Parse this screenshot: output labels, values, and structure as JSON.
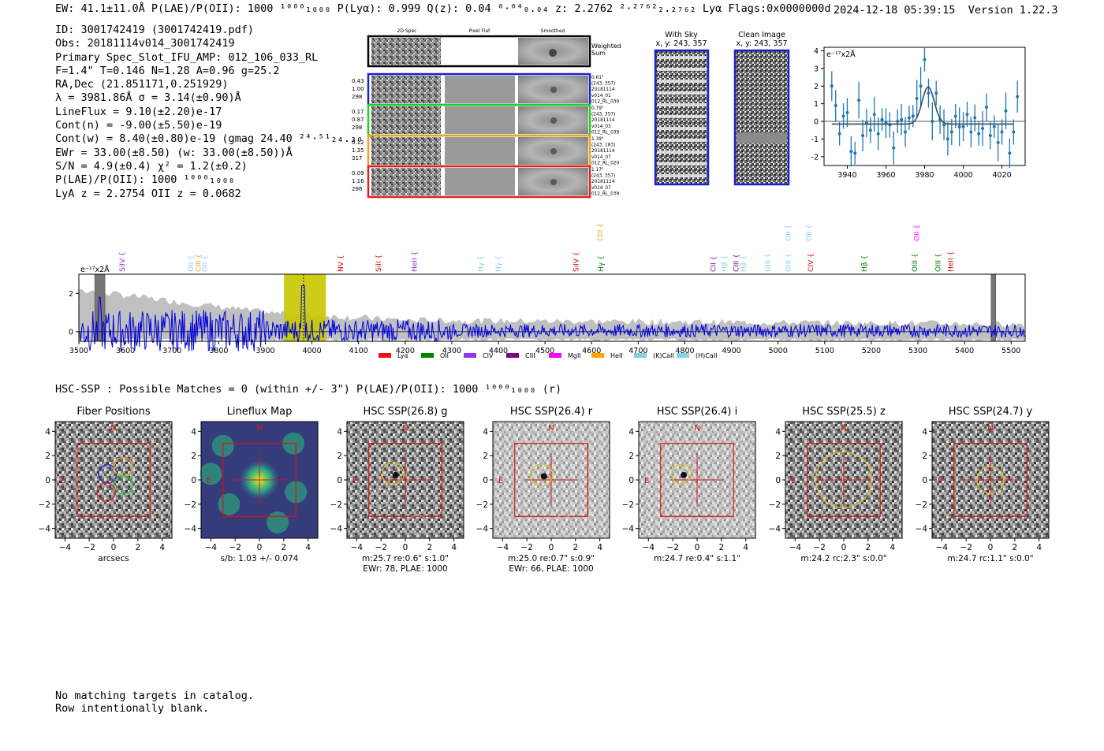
{
  "header": {
    "line": "EW: 41.1±11.0Å  P(LAE)/P(OII): 1000 ¹⁰⁰⁰₁₀₀₀  P(Lyα): 0.999  Q(z): 0.04 ⁰·⁰⁴₀.₀₄  z: 2.2762 ²·²⁷⁶²₂.₂₇₆₂  Lyα  Flags:0x0000000d",
    "timestamp": "2024-12-18 05:39:15",
    "version": "Version 1.22.3"
  },
  "info": [
    "ID: 3001742419 (3001742419.pdf)",
    "Obs: 20181114v014_3001742419",
    "Primary Spec_Slot_IFU_AMP: 012_106_033_RL",
    "F=1.4\"  T=0.146  N=1.28  A=0.96  g=25.2",
    "RA,Dec (21.851171,0.251929)",
    "λ = 3981.86Å  σ = 3.14(±0.90)Å",
    "LineFlux = 9.10(±2.20)e-17",
    "Cont(n) = -9.00(±5.50)e-19",
    "Cont(w) = 8.40(±0.80)e-19 (gmag 24.40 ²⁴·⁵¹₂₄.₃₀ *)",
    "EWr = 33.00(±8.50) (w: 33.00(±8.50))Å",
    "S/N = 4.9(±0.4)  χ² = 1.2(±0.2)",
    "P(LAE)/P(OII): 1000 ¹⁰⁰⁰₁₀₀₀",
    "LyA z = 2.2754  OII z = 0.0682"
  ],
  "cutouts": {
    "col_headers": [
      "2D Spec",
      "Pixel Flat",
      "Smoothed"
    ],
    "weighted_label": [
      "Weighted",
      "Sum"
    ],
    "rows": [
      {
        "left": [
          "0.43",
          "1.00",
          "298"
        ],
        "right": [
          "0.61\"",
          "(243, 357)",
          "20181114",
          "v014_01",
          "012_RL_039"
        ],
        "color": "#1f1fcc"
      },
      {
        "left": [
          "0.17",
          "0.87",
          "298"
        ],
        "right": [
          "0.79\"",
          "(243, 357)",
          "20181114",
          "v014_03",
          "012_RL_039"
        ],
        "color": "#22cc22"
      },
      {
        "left": [
          "0.12",
          "1.35",
          "317"
        ],
        "right": [
          "1.39\"",
          "(243, 183)",
          "20181114",
          "v014_07",
          "012_RL_020"
        ],
        "color": "#f0a020"
      },
      {
        "left": [
          "0.09",
          "1.16",
          "298"
        ],
        "right": [
          "1.17\"",
          "(243, 357)",
          "20181114",
          "v014_07",
          "012_RL_039"
        ],
        "color": "#dd2222"
      }
    ],
    "with_sky": [
      "With Sky",
      "x, y: 243, 357"
    ],
    "clean_image": [
      "Clean Image",
      "x, y: 243, 357"
    ]
  },
  "zoom_chart": {
    "ylabel": "e⁻¹⁷x2Å",
    "x_ticks": [
      "3940",
      "3960",
      "3980",
      "4000",
      "4020"
    ],
    "y_ticks": [
      "4",
      "3",
      "2",
      "1",
      "0",
      "-1",
      "-2"
    ]
  },
  "chart_data": {
    "type": "line",
    "title": "",
    "ylabel": "e⁻¹⁷x2Å",
    "xlim": [
      3500,
      5530
    ],
    "ylim": [
      -0.5,
      3.0
    ],
    "x_ticks": [
      3500,
      3600,
      3700,
      3800,
      3900,
      4000,
      4100,
      4200,
      4300,
      4400,
      4500,
      4600,
      4700,
      4800,
      4900,
      5000,
      5100,
      5200,
      5300,
      5400,
      5500
    ],
    "y_ticks": [
      0,
      2
    ],
    "highlight_range": [
      3940,
      4030
    ],
    "line_center": 3982,
    "masked_regions": [
      [
        3534,
        3556
      ],
      [
        5457,
        5467
      ]
    ],
    "line_markers": [
      {
        "name": "SiIV",
        "x": 3593,
        "color": "#8a2be2",
        "level": 1
      },
      {
        "name": "OII",
        "x": 3740,
        "color": "#87ceeb",
        "level": 1
      },
      {
        "name": "CIII",
        "x": 3756,
        "color": "#f0a020",
        "level": 1
      },
      {
        "name": "OII",
        "x": 3770,
        "color": "#87ceeb",
        "level": 1
      },
      {
        "name": "NV",
        "x": 4062,
        "color": "#dd0000",
        "level": 1
      },
      {
        "name": "SiII",
        "x": 4143,
        "color": "#dd0000",
        "level": 1
      },
      {
        "name": "HeII",
        "x": 4220,
        "color": "#8a2be2",
        "level": 1
      },
      {
        "name": "Hγ",
        "x": 4362,
        "color": "#87ceeb",
        "level": 1
      },
      {
        "name": "Hγ",
        "x": 4400,
        "color": "#87ceeb",
        "level": 1
      },
      {
        "name": "CIII",
        "x": 4618,
        "color": "#f0a020",
        "level": 0
      },
      {
        "name": "SiIV",
        "x": 4567,
        "color": "#dd0000",
        "level": 1
      },
      {
        "name": "Hγ",
        "x": 4620,
        "color": "#008000",
        "level": 1
      },
      {
        "name": "CII",
        "x": 4861,
        "color": "#800080",
        "level": 1
      },
      {
        "name": "Hβ",
        "x": 4885,
        "color": "#87ceeb",
        "level": 1
      },
      {
        "name": "CIII",
        "x": 4910,
        "color": "#800080",
        "level": 1
      },
      {
        "name": "Hβ",
        "x": 4925,
        "color": "#87ceeb",
        "level": 1
      },
      {
        "name": "OIII",
        "x": 4978,
        "color": "#87ceeb",
        "level": 1
      },
      {
        "name": "OII",
        "x": 5022,
        "color": "#87ceeb",
        "level": 0
      },
      {
        "name": "OIII",
        "x": 5022,
        "color": "#87ceeb",
        "level": 1
      },
      {
        "name": "OII",
        "x": 5066,
        "color": "#87ceeb",
        "level": 0
      },
      {
        "name": "CIV",
        "x": 5070,
        "color": "#dd0000",
        "level": 1
      },
      {
        "name": "Hβ",
        "x": 5185,
        "color": "#008000",
        "level": 1
      },
      {
        "name": "OII",
        "x": 5297,
        "color": "#ff00ff",
        "level": 0
      },
      {
        "name": "OIII",
        "x": 5293,
        "color": "#008000",
        "level": 1
      },
      {
        "name": "OIII",
        "x": 5343,
        "color": "#008000",
        "level": 1
      },
      {
        "name": "HeII",
        "x": 5370,
        "color": "#dd0000",
        "level": 1
      }
    ],
    "legend": [
      {
        "name": "Lyα",
        "color": "#ee1111"
      },
      {
        "name": "OII",
        "color": "#008000"
      },
      {
        "name": "CIV",
        "color": "#9333ee"
      },
      {
        "name": "CIII",
        "color": "#800080"
      },
      {
        "name": "MgII",
        "color": "#ff00ff"
      },
      {
        "name": "HeII",
        "color": "#ffa500"
      },
      {
        "name": "(K)CaII",
        "color": "#87ceeb"
      },
      {
        "name": "(H)CaII",
        "color": "#87ceeb"
      }
    ],
    "zoom_points": {
      "x": [
        3932,
        3934,
        3936,
        3938,
        3940,
        3942,
        3944,
        3946,
        3948,
        3950,
        3952,
        3954,
        3956,
        3958,
        3960,
        3962,
        3964,
        3966,
        3968,
        3970,
        3972,
        3974,
        3976,
        3978,
        3980,
        3982,
        3984,
        3986,
        3988,
        3990,
        3992,
        3994,
        3996,
        3998,
        4000,
        4002,
        4004,
        4006,
        4008,
        4010,
        4012,
        4014,
        4016,
        4018,
        4020,
        4022,
        4024,
        4026,
        4028
      ],
      "y": [
        2.0,
        0.9,
        -0.7,
        0.3,
        0.5,
        -1.7,
        -1.8,
        1.2,
        -0.8,
        -0.1,
        -0.5,
        0.4,
        -0.7,
        0.1,
        -0.1,
        -0.2,
        -1.5,
        0.0,
        0.1,
        -0.6,
        0.2,
        0.3,
        1.3,
        2.0,
        3.5,
        1.6,
        0.0,
        1.6,
        0.1,
        -0.2,
        -1.0,
        -0.6,
        0.3,
        -0.3,
        -0.3,
        0.4,
        -0.6,
        0.2,
        -0.7,
        -0.4,
        0.8,
        -0.8,
        -0.3,
        -1.2,
        -0.6,
        0.6,
        -1.8,
        -0.6,
        1.4
      ],
      "fit_center": 3981.86,
      "fit_amplitude": 2.1,
      "fit_sigma": 3.14
    }
  },
  "hsc": {
    "line": "HSC-SSP : Possible Matches = 0 (within +/- 3\")  P(LAE)/P(OII): 1000 ¹⁰⁰⁰₁₀₀₀ (r)",
    "panels": [
      {
        "title": "Fiber Positions",
        "cap1": "arcsecs",
        "cap2": "",
        "kind": "fiber"
      },
      {
        "title": "Lineflux Map",
        "cap1": "s/b: 1.03 +/- 0.074",
        "cap2": "",
        "kind": "flux"
      },
      {
        "title": "HSC SSP(26.8) g",
        "cap1": "m:25.7  re:0.6\"  s:1.0\"",
        "cap2": "EWr: 78, PLAE: 1000",
        "kind": "g"
      },
      {
        "title": "HSC SSP(26.4) r",
        "cap1": "m:25.0  re:0.7\"  s:0.9\"",
        "cap2": "EWr: 66, PLAE: 1000",
        "kind": "r"
      },
      {
        "title": "HSC SSP(26.4) i",
        "cap1": "m:24.7  re:0.4\"  s:1.1\"",
        "cap2": "",
        "kind": "i"
      },
      {
        "title": "HSC SSP(25.5) z",
        "cap1": "m:24.2 rc:2.3\"  s:0.0\"",
        "cap2": "",
        "kind": "z"
      },
      {
        "title": "HSC SSP(24.7) y",
        "cap1": "m:24.7 rc:1.1\"  s:0.0\"",
        "cap2": "",
        "kind": "y"
      }
    ],
    "ticks": [
      "-4",
      "-2",
      "0",
      "2",
      "4"
    ],
    "n_label": "N",
    "e_label": "E"
  },
  "footer": [
    "No matching targets in catalog.",
    "Row intentionally blank."
  ]
}
